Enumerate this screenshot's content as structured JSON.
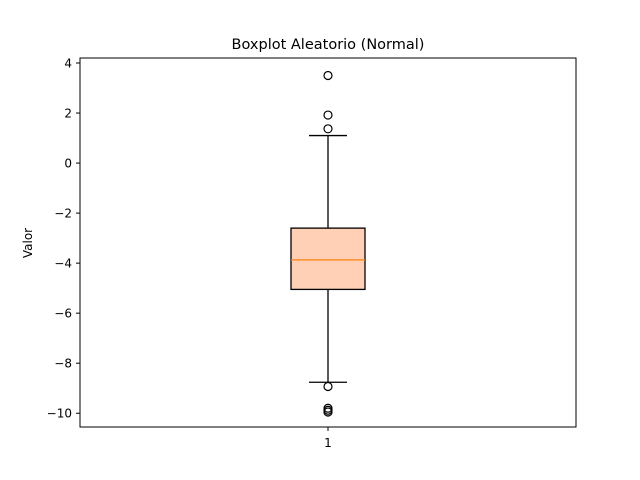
{
  "chart_data": {
    "type": "boxplot",
    "title": "Boxplot Aleatorio (Normal)",
    "ylabel": "Valor",
    "xlabel": "",
    "categories": [
      "1"
    ],
    "ylim": [
      -10.55,
      4.2
    ],
    "yticks": [
      4,
      2,
      0,
      -2,
      -4,
      -6,
      -8,
      -10
    ],
    "ytick_labels": [
      "4",
      "2",
      "0",
      "−2",
      "−4",
      "−6",
      "−8",
      "−10"
    ],
    "grid": false,
    "boxes": [
      {
        "category": "1",
        "q1": -5.05,
        "median": -3.87,
        "q3": -2.6,
        "whisker_low": -8.76,
        "whisker_high": 1.1,
        "outliers": [
          3.5,
          1.92,
          1.37,
          -8.93,
          -9.8,
          -9.88,
          -9.95
        ]
      }
    ],
    "colors": {
      "box_fill": "#ffd0b5",
      "box_edge": "#000000",
      "median": "#ff7f0e",
      "whisker": "#000000"
    }
  }
}
